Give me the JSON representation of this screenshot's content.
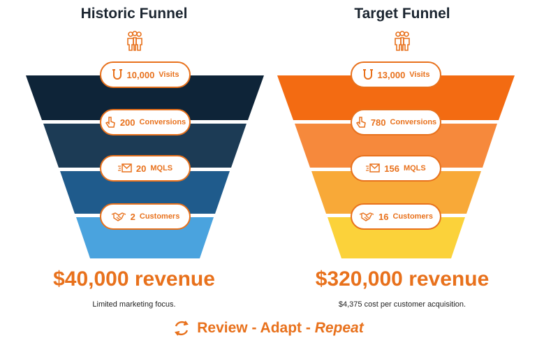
{
  "colors": {
    "accent": "#e8711c",
    "title": "#1b2530",
    "historic_bands": [
      "#0e2438",
      "#1c3b55",
      "#1f5b8c",
      "#4aa3de"
    ],
    "target_bands": [
      "#f36b12",
      "#f6893c",
      "#f8a938",
      "#fbd23a"
    ]
  },
  "funnels": [
    {
      "title": "Historic Funnel",
      "icon": "people-icon",
      "stages": [
        {
          "value": "10,000",
          "unit": "Visits",
          "icon": "magnet-icon"
        },
        {
          "value": "200",
          "unit": "Conversions",
          "icon": "pointer-hand-icon"
        },
        {
          "value": "20",
          "unit": "MQLS",
          "icon": "send-mail-icon"
        },
        {
          "value": "2",
          "unit": "Customers",
          "icon": "handshake-icon"
        }
      ],
      "revenue": "$40,000 revenue",
      "note": "Limited marketing focus."
    },
    {
      "title": "Target Funnel",
      "icon": "people-icon",
      "stages": [
        {
          "value": "13,000",
          "unit": "Visits",
          "icon": "magnet-icon"
        },
        {
          "value": "780",
          "unit": "Conversions",
          "icon": "pointer-hand-icon"
        },
        {
          "value": "156",
          "unit": "MQLS",
          "icon": "send-mail-icon"
        },
        {
          "value": "16",
          "unit": "Customers",
          "icon": "handshake-icon"
        }
      ],
      "revenue": "$320,000 revenue",
      "note": "$4,375 cost per customer acquisition."
    }
  ],
  "footer": {
    "icon": "cycle-arrows-icon",
    "review": "Review",
    "sep1": " - ",
    "adapt": "Adapt",
    "sep2": " - ",
    "repeat": "Repeat"
  }
}
